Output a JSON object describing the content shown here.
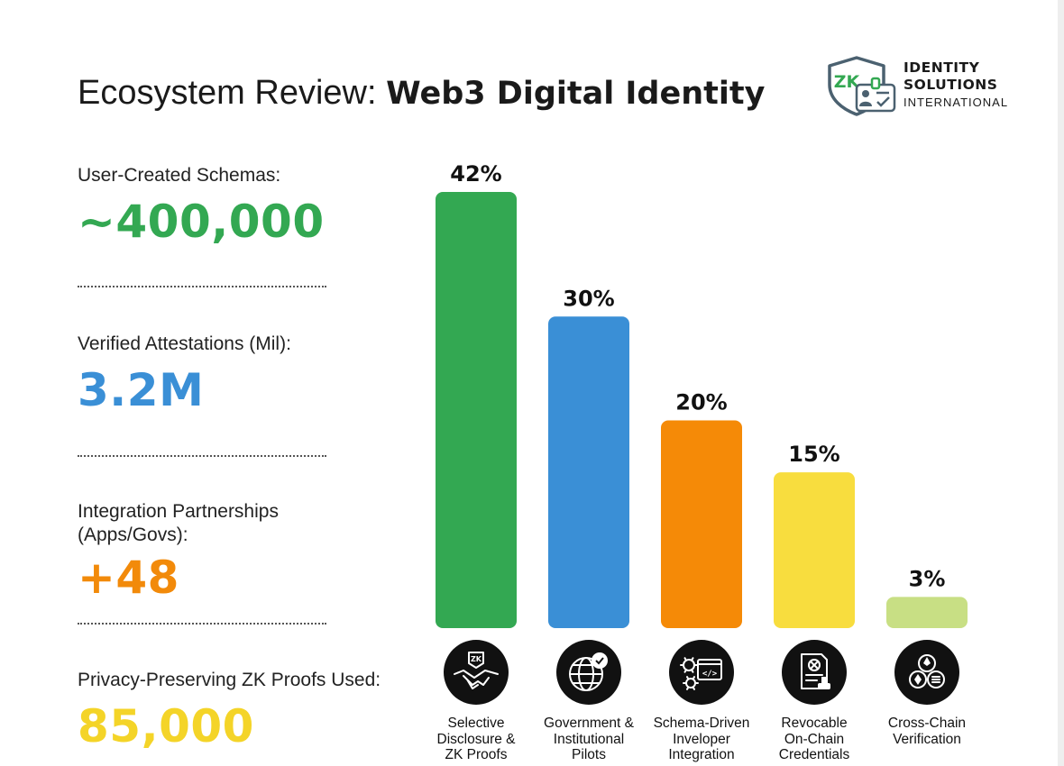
{
  "header": {
    "title_plain": "Ecosystem Review: ",
    "title_bold": "Web3 Digital Identity"
  },
  "brand": {
    "badge": "ZK",
    "line1": "IDENTITY",
    "line2": "SOLUTIONS",
    "line3": "INTERNATIONAL",
    "icon": "shield-id-card-icon",
    "colors": {
      "shield": "#4b6170",
      "badge": "#33a852"
    }
  },
  "stats": [
    {
      "label": "User-Created Schemas:",
      "value": "~400,000",
      "color": "#33a852"
    },
    {
      "label": "Verified Attestations (Mil):",
      "value": "3.2M",
      "color": "#3a8fd6"
    },
    {
      "label": "Integration Partnerships (Apps/Govs):",
      "value": "+48",
      "color": "#f28a0a"
    },
    {
      "label": "Privacy-Preserving ZK Proofs Used:",
      "value": "85,000",
      "color": "#f4d428"
    }
  ],
  "chart_data": {
    "type": "bar",
    "categories": [
      "Selective Disclosure & ZK Proofs",
      "Government & Institutional Pilots",
      "Schema-Driven Inveloper Integration",
      "Revocable On-Chain Credentials",
      "Cross-Chain Verification"
    ],
    "category_lines": [
      [
        "Selective",
        "Disclosure &",
        "ZK Proofs"
      ],
      [
        "Government &",
        "Institutional",
        "Pilots"
      ],
      [
        "Schema-Driven",
        "Inveloper",
        "Integration"
      ],
      [
        "Revocable",
        "On-Chain",
        "Credentials"
      ],
      [
        "Cross-Chain",
        "Verification"
      ]
    ],
    "values": [
      42,
      30,
      20,
      15,
      3
    ],
    "value_labels": [
      "42%",
      "30%",
      "20%",
      "15%",
      "3%"
    ],
    "unit": "%",
    "colors": [
      "#33a852",
      "#3a8fd6",
      "#f58a07",
      "#f8dd3e",
      "#c8df84"
    ],
    "icons": [
      "zk-handshake-icon",
      "globe-check-icon",
      "gear-code-icon",
      "document-stamp-icon",
      "ethereum-chain-icon"
    ],
    "ylim": [
      0,
      42
    ],
    "grid": false,
    "legend": "none"
  }
}
